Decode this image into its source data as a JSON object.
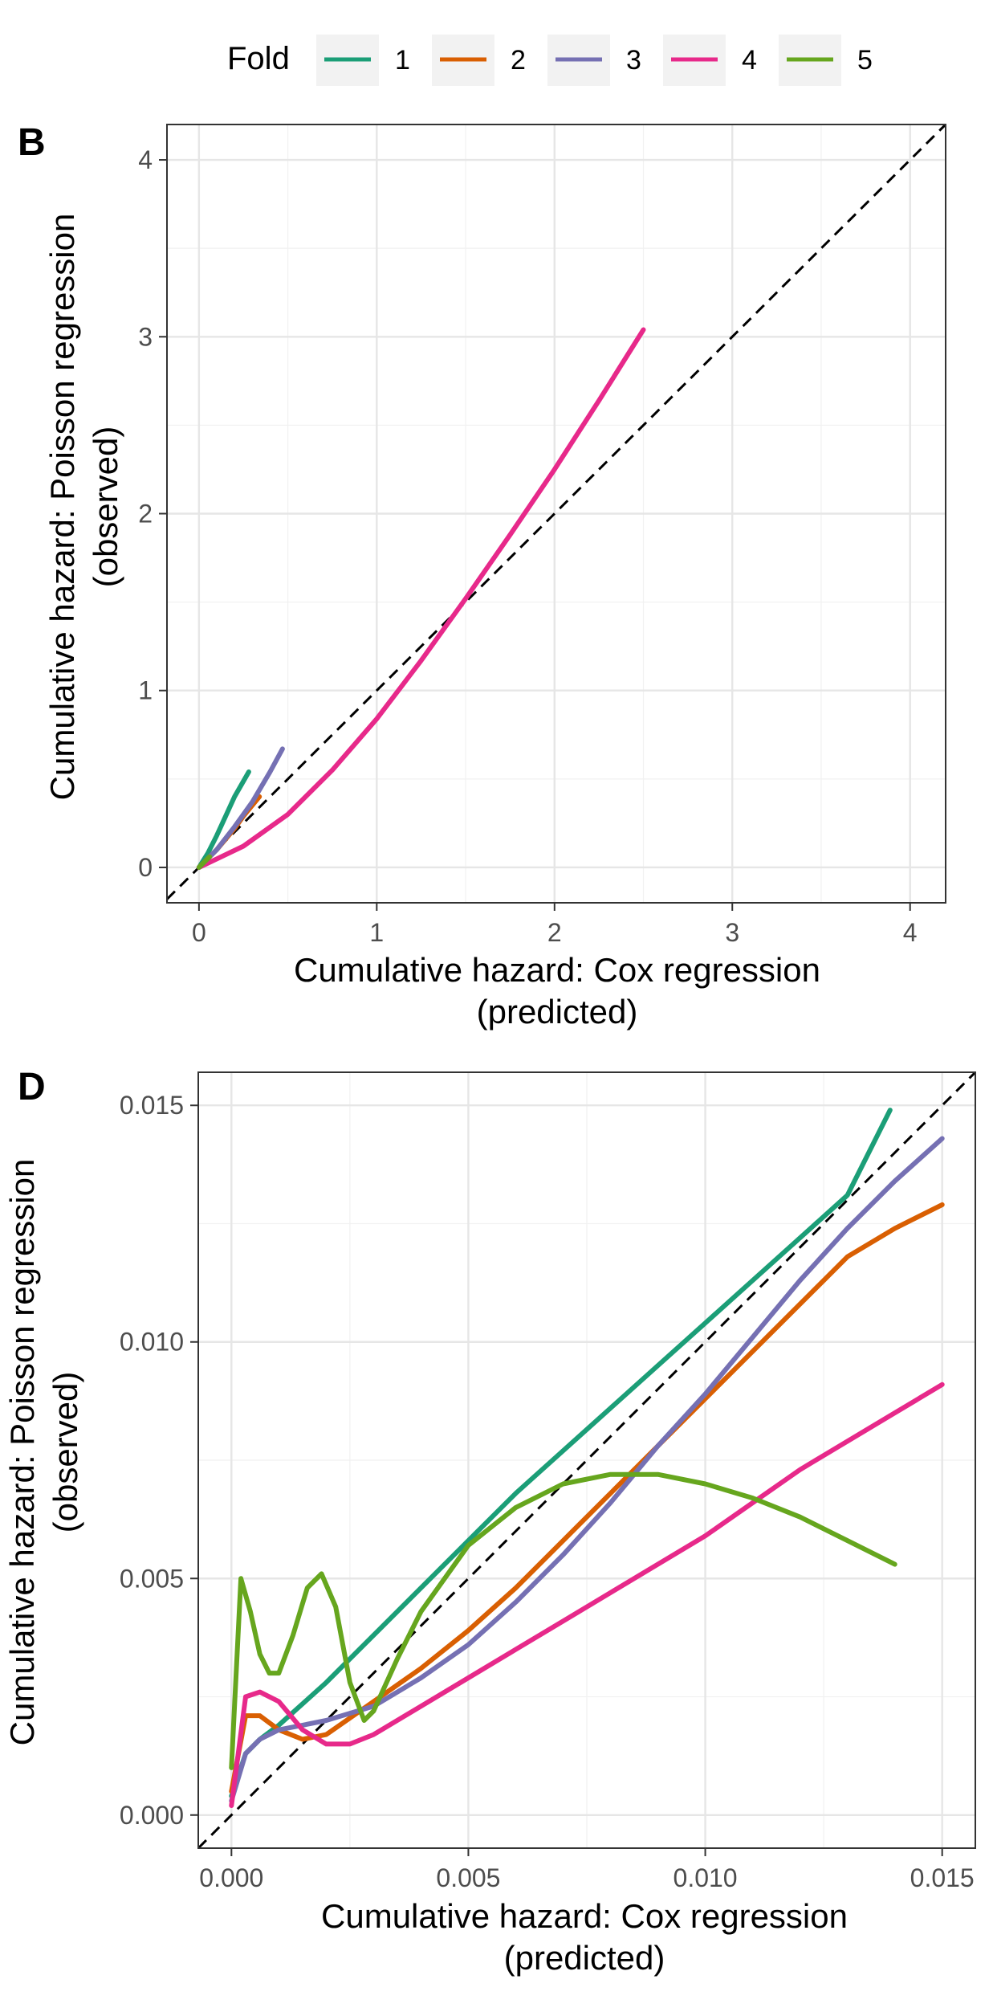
{
  "legend": {
    "title": "Fold",
    "entries": [
      {
        "label": "1",
        "color": "#1b9e77"
      },
      {
        "label": "2",
        "color": "#d95f02"
      },
      {
        "label": "3",
        "color": "#7570b3"
      },
      {
        "label": "4",
        "color": "#e7298a"
      },
      {
        "label": "5",
        "color": "#66a61e"
      }
    ]
  },
  "chart_data": [
    {
      "type": "line",
      "panel_tag": "B",
      "xlabel_line1": "Cumulative hazard: Cox regression",
      "xlabel_line2": "(predicted)",
      "ylabel_line1": "Cumulative hazard: Poisson regression",
      "ylabel_line2": "(observed)",
      "xlim": [
        -0.18,
        4.2
      ],
      "ylim": [
        -0.2,
        4.2
      ],
      "xticks": [
        0,
        1,
        2,
        3,
        4
      ],
      "yticks": [
        0,
        1,
        2,
        3,
        4
      ],
      "xtick_labels": [
        "0",
        "1",
        "2",
        "3",
        "4"
      ],
      "ytick_labels": [
        "0",
        "1",
        "2",
        "3",
        "4"
      ],
      "reference_line": "y = x (dashed)",
      "series": [
        {
          "name": "1",
          "x": [
            0,
            0.05,
            0.1,
            0.15,
            0.2,
            0.28
          ],
          "y": [
            0,
            0.08,
            0.18,
            0.29,
            0.4,
            0.54
          ]
        },
        {
          "name": "2",
          "x": [
            0,
            0.05,
            0.1,
            0.15,
            0.2,
            0.25,
            0.34
          ],
          "y": [
            0,
            0.05,
            0.1,
            0.16,
            0.22,
            0.29,
            0.4
          ]
        },
        {
          "name": "3",
          "x": [
            0,
            0.1,
            0.2,
            0.3,
            0.4,
            0.47
          ],
          "y": [
            0,
            0.1,
            0.23,
            0.37,
            0.54,
            0.67
          ]
        },
        {
          "name": "4",
          "x": [
            0,
            0.25,
            0.5,
            0.75,
            1.0,
            1.25,
            1.5,
            1.75,
            2.0,
            2.25,
            2.5
          ],
          "y": [
            0,
            0.12,
            0.3,
            0.55,
            0.84,
            1.17,
            1.52,
            1.88,
            2.25,
            2.64,
            3.04
          ]
        },
        {
          "name": "5",
          "x": [
            0,
            0.02,
            0.04,
            0.06
          ],
          "y": [
            0,
            0.02,
            0.04,
            0.06
          ]
        }
      ]
    },
    {
      "type": "line",
      "panel_tag": "D",
      "xlabel_line1": "Cumulative hazard: Cox regression",
      "xlabel_line2": "(predicted)",
      "ylabel_line1": "Cumulative hazard: Poisson regression",
      "ylabel_line2": "(observed)",
      "xlim": [
        -0.0007,
        0.0157
      ],
      "ylim": [
        -0.0007,
        0.0157
      ],
      "xticks": [
        0,
        0.005,
        0.01,
        0.015
      ],
      "yticks": [
        0,
        0.005,
        0.01,
        0.015
      ],
      "xtick_labels": [
        "0.000",
        "0.005",
        "0.010",
        "0.015"
      ],
      "ytick_labels": [
        "0.000",
        "0.005",
        "0.010",
        "0.015"
      ],
      "reference_line": "y = x (dashed)",
      "series": [
        {
          "name": "1",
          "x": [
            0,
            0.0003,
            0.0006,
            0.001,
            0.002,
            0.003,
            0.004,
            0.005,
            0.006,
            0.007,
            0.008,
            0.009,
            0.01,
            0.011,
            0.012,
            0.013,
            0.0139
          ],
          "y": [
            0.0004,
            0.0013,
            0.0016,
            0.0019,
            0.0028,
            0.0038,
            0.0048,
            0.0058,
            0.0068,
            0.0077,
            0.0086,
            0.0095,
            0.0104,
            0.0113,
            0.0122,
            0.0131,
            0.0149
          ]
        },
        {
          "name": "2",
          "x": [
            0,
            0.0003,
            0.0006,
            0.001,
            0.0015,
            0.002,
            0.003,
            0.004,
            0.005,
            0.006,
            0.007,
            0.008,
            0.009,
            0.01,
            0.011,
            0.012,
            0.013,
            0.014,
            0.015
          ],
          "y": [
            0.0005,
            0.0021,
            0.0021,
            0.0018,
            0.0016,
            0.0017,
            0.0024,
            0.0031,
            0.0039,
            0.0048,
            0.0058,
            0.0068,
            0.0078,
            0.0088,
            0.0098,
            0.0108,
            0.0118,
            0.0124,
            0.0129
          ]
        },
        {
          "name": "3",
          "x": [
            0,
            0.0003,
            0.0006,
            0.001,
            0.0015,
            0.002,
            0.003,
            0.004,
            0.005,
            0.006,
            0.007,
            0.008,
            0.009,
            0.01,
            0.011,
            0.012,
            0.013,
            0.014,
            0.015
          ],
          "y": [
            0.0003,
            0.0013,
            0.0016,
            0.0018,
            0.0019,
            0.002,
            0.0023,
            0.0029,
            0.0036,
            0.0045,
            0.0055,
            0.0066,
            0.0078,
            0.0089,
            0.0101,
            0.0113,
            0.0124,
            0.0134,
            0.0143
          ]
        },
        {
          "name": "4",
          "x": [
            0,
            0.0003,
            0.0006,
            0.001,
            0.0015,
            0.002,
            0.0025,
            0.003,
            0.004,
            0.005,
            0.006,
            0.007,
            0.008,
            0.009,
            0.01,
            0.011,
            0.012,
            0.013,
            0.014,
            0.015
          ],
          "y": [
            0.0002,
            0.0025,
            0.0026,
            0.0024,
            0.0018,
            0.0015,
            0.0015,
            0.0017,
            0.0023,
            0.0029,
            0.0035,
            0.0041,
            0.0047,
            0.0053,
            0.0059,
            0.0066,
            0.0073,
            0.0079,
            0.0085,
            0.0091
          ]
        },
        {
          "name": "5",
          "x": [
            0,
            0.0002,
            0.0004,
            0.0006,
            0.0008,
            0.001,
            0.0013,
            0.0016,
            0.0019,
            0.0022,
            0.0025,
            0.0028,
            0.003,
            0.0035,
            0.004,
            0.005,
            0.006,
            0.007,
            0.008,
            0.009,
            0.01,
            0.011,
            0.012,
            0.013,
            0.014
          ],
          "y": [
            0.001,
            0.005,
            0.0043,
            0.0034,
            0.003,
            0.003,
            0.0038,
            0.0048,
            0.0051,
            0.0044,
            0.0028,
            0.002,
            0.0022,
            0.0033,
            0.0043,
            0.0057,
            0.0065,
            0.007,
            0.0072,
            0.0072,
            0.007,
            0.0067,
            0.0063,
            0.0058,
            0.0053
          ]
        }
      ]
    }
  ]
}
